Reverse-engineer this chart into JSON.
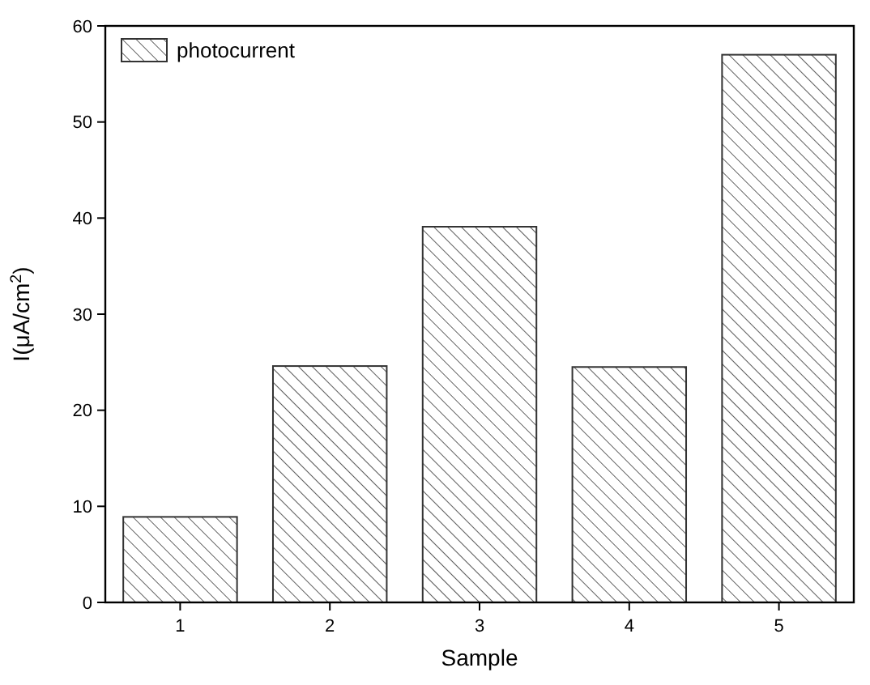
{
  "chart_data": {
    "type": "bar",
    "xlabel": "Sample",
    "ylabel": "I(μA/cm$^{2}$)",
    "categories": [
      "1",
      "2",
      "3",
      "4",
      "5"
    ],
    "series": [
      {
        "name": "photocurrent",
        "color": "#333333",
        "values": [
          8.9,
          24.6,
          39.1,
          24.5,
          57
        ]
      }
    ],
    "ylim": [
      0,
      60
    ],
    "yticks": [
      0,
      10,
      20,
      30,
      40,
      50,
      60
    ],
    "grid": false,
    "legend": "top left"
  }
}
